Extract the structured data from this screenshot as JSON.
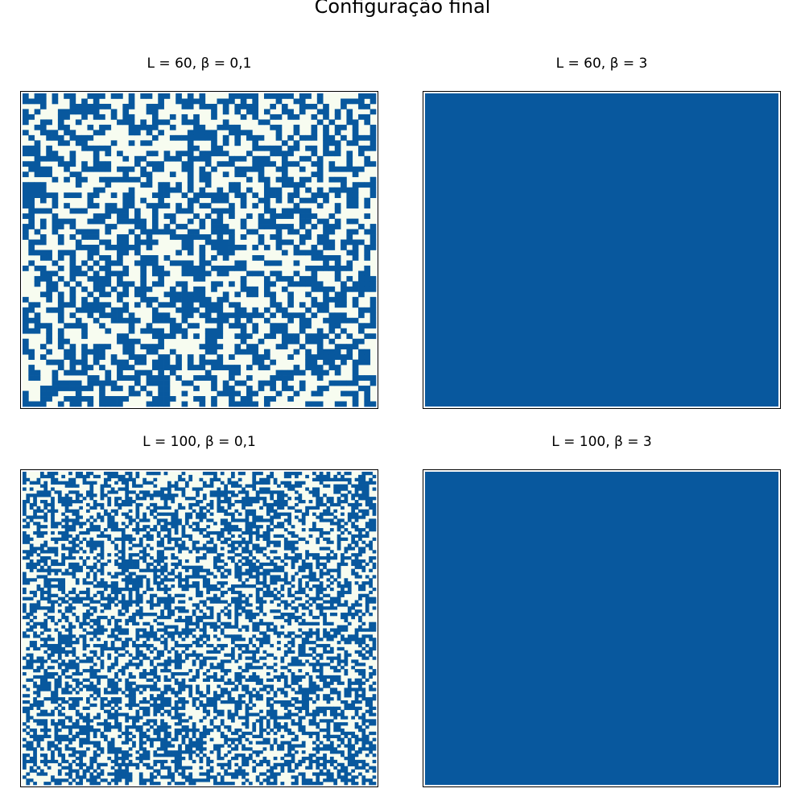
{
  "figure": {
    "title": "Configuração final"
  },
  "colors": {
    "up": "#08589e",
    "down": "#f7fcf0",
    "frame": "#000000"
  },
  "chart_data": [
    {
      "type": "heatmap",
      "title": "L = 60, β = 0,1",
      "L": 60,
      "beta": 0.1,
      "cmap": [
        "#f7fcf0",
        "#08589e"
      ],
      "state": "disordered spin lattice, mixed up/down",
      "up_fraction": 0.5,
      "seed": 17
    },
    {
      "type": "heatmap",
      "title": "L = 60, β = 3",
      "L": 60,
      "beta": 3,
      "cmap": [
        "#f7fcf0",
        "#08589e"
      ],
      "state": "fully ordered, all spins up",
      "up_fraction": 1.0
    },
    {
      "type": "heatmap",
      "title": "L = 100, β = 0,1",
      "L": 100,
      "beta": 0.1,
      "cmap": [
        "#f7fcf0",
        "#08589e"
      ],
      "state": "disordered spin lattice, mixed up/down",
      "up_fraction": 0.5,
      "seed": 29
    },
    {
      "type": "heatmap",
      "title": "L = 100, β = 3",
      "L": 100,
      "beta": 3,
      "cmap": [
        "#f7fcf0",
        "#08589e"
      ],
      "state": "fully ordered, all spins up",
      "up_fraction": 1.0
    }
  ]
}
